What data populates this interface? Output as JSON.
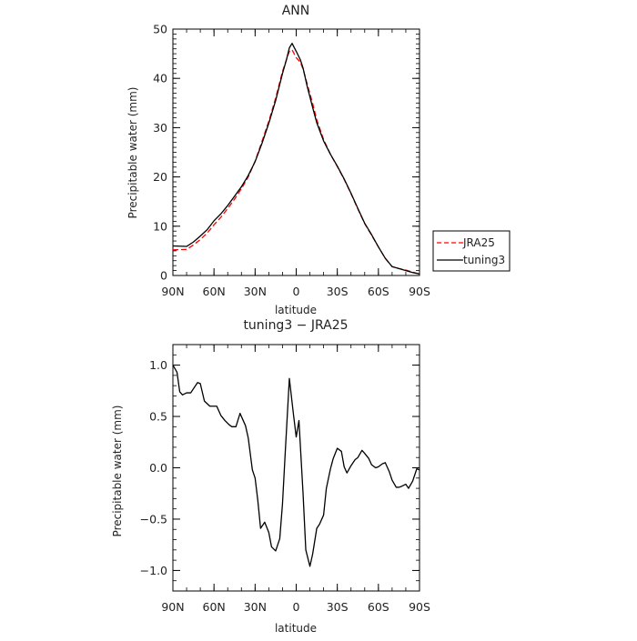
{
  "chart_data": [
    {
      "type": "line",
      "title": "ANN",
      "xlabel": "latitude",
      "ylabel": "Precipitable water  (mm)",
      "xlim": [
        90,
        -90
      ],
      "ylim": [
        0,
        50
      ],
      "x_ticks": [
        90,
        60,
        30,
        0,
        -30,
        -60,
        -90
      ],
      "x_tick_labels": [
        "90N",
        "60N",
        "30N",
        "0",
        "30S",
        "60S",
        "90S"
      ],
      "y_ticks": [
        0,
        10,
        20,
        30,
        40,
        50
      ],
      "y_tick_labels": [
        "0",
        "10",
        "20",
        "30",
        "40",
        "50"
      ],
      "legend": {
        "placement": "right, outside plot"
      },
      "series": [
        {
          "name": "JRA25",
          "color": "#ff0000",
          "dash": "dashed",
          "x": [
            90,
            80,
            75,
            70,
            65,
            60,
            55,
            50,
            45,
            40,
            35,
            30,
            25,
            20,
            15,
            10,
            7,
            5,
            3,
            0,
            -3,
            -5,
            -8,
            -12,
            -15,
            -20,
            -25,
            -30,
            -35,
            -40,
            -45,
            -50,
            -55,
            -60,
            -65,
            -70,
            -75,
            -80,
            -85,
            -90
          ],
          "values": [
            5.2,
            5.3,
            6.2,
            7.3,
            8.6,
            10.3,
            11.8,
            13.6,
            15.5,
            17.6,
            20.0,
            23.2,
            27.2,
            31.3,
            36.0,
            41.4,
            43.9,
            45.5,
            45.8,
            44.2,
            43.3,
            41.9,
            38.9,
            34.9,
            31.6,
            27.6,
            24.6,
            22.1,
            19.5,
            16.6,
            13.5,
            10.5,
            8.2,
            5.8,
            3.5,
            1.8,
            1.4,
            1.1,
            0.7,
            0.3
          ]
        },
        {
          "name": "tuning3",
          "color": "#000000",
          "dash": "solid",
          "x": [
            90,
            80,
            75,
            70,
            65,
            60,
            55,
            50,
            45,
            40,
            35,
            30,
            25,
            20,
            15,
            10,
            7,
            5,
            3,
            0,
            -3,
            -5,
            -8,
            -12,
            -15,
            -20,
            -25,
            -30,
            -35,
            -40,
            -45,
            -50,
            -55,
            -60,
            -65,
            -70,
            -75,
            -80,
            -85,
            -90
          ],
          "values": [
            6.0,
            5.9,
            6.8,
            8.0,
            9.3,
            11.1,
            12.5,
            14.2,
            16.1,
            18.0,
            20.3,
            23.1,
            26.8,
            30.9,
            35.5,
            41.0,
            43.9,
            46.2,
            47.1,
            45.5,
            43.8,
            42.1,
            38.4,
            34.1,
            31.0,
            27.3,
            24.6,
            22.2,
            19.6,
            16.7,
            13.6,
            10.6,
            8.3,
            5.8,
            3.5,
            1.8,
            1.4,
            1.0,
            0.6,
            0.3
          ]
        }
      ]
    },
    {
      "type": "line",
      "title": "tuning3 − JRA25",
      "xlabel": "latitude",
      "ylabel": "Precipitable water  (mm)",
      "xlim": [
        90,
        -90
      ],
      "ylim": [
        -1.2,
        1.2
      ],
      "x_ticks": [
        90,
        60,
        30,
        0,
        -30,
        -60,
        -90
      ],
      "x_tick_labels": [
        "90N",
        "60N",
        "30N",
        "0",
        "30S",
        "60S",
        "90S"
      ],
      "y_ticks": [
        -1.0,
        -0.5,
        0.0,
        0.5,
        1.0
      ],
      "y_tick_labels": [
        "−1.0",
        "−0.5",
        "0.0",
        "0.5",
        "1.0"
      ],
      "series": [
        {
          "name": "",
          "color": "#000000",
          "x": [
            90,
            87,
            85,
            83,
            80,
            77,
            72,
            70,
            67,
            63,
            60,
            58,
            55,
            52,
            49,
            47,
            44,
            41,
            39,
            37,
            35,
            32,
            30,
            28,
            26,
            23,
            20,
            18,
            15,
            12,
            10,
            8,
            5,
            2,
            0,
            -2,
            -5,
            -7,
            -10,
            -12,
            -15,
            -17,
            -20,
            -22,
            -25,
            -27,
            -30,
            -33,
            -35,
            -37,
            -40,
            -43,
            -45,
            -48,
            -50,
            -53,
            -55,
            -58,
            -60,
            -63,
            -65,
            -68,
            -70,
            -73,
            -75,
            -77,
            -80,
            -82,
            -85,
            -88,
            -90
          ],
          "values": [
            1.0,
            0.93,
            0.74,
            0.71,
            0.73,
            0.73,
            0.83,
            0.82,
            0.65,
            0.6,
            0.6,
            0.6,
            0.51,
            0.46,
            0.42,
            0.4,
            0.4,
            0.53,
            0.47,
            0.41,
            0.29,
            -0.02,
            -0.1,
            -0.32,
            -0.59,
            -0.53,
            -0.63,
            -0.77,
            -0.81,
            -0.69,
            -0.35,
            0.15,
            0.87,
            0.52,
            0.3,
            0.46,
            -0.25,
            -0.8,
            -0.96,
            -0.84,
            -0.59,
            -0.55,
            -0.46,
            -0.2,
            -0.01,
            0.09,
            0.19,
            0.16,
            0.01,
            -0.05,
            0.02,
            0.08,
            0.1,
            0.17,
            0.14,
            0.09,
            0.03,
            0.0,
            0.01,
            0.04,
            0.05,
            -0.04,
            -0.12,
            -0.19,
            -0.19,
            -0.18,
            -0.16,
            -0.2,
            -0.13,
            -0.01,
            -0.02
          ]
        }
      ]
    }
  ]
}
